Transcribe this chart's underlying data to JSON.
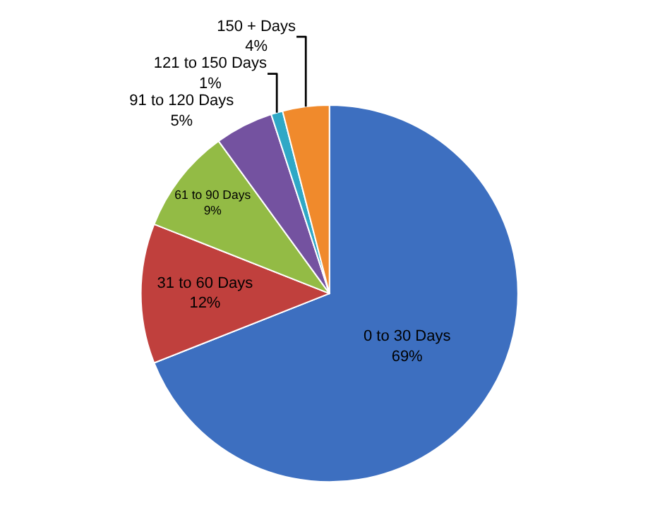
{
  "chart_data": {
    "type": "pie",
    "categories": [
      "0 to 30 Days",
      "31 to 60 Days",
      "61 to 90 Days",
      "91 to 120 Days",
      "121 to 150 Days",
      "150 + Days"
    ],
    "values": [
      69,
      12,
      9,
      5,
      1,
      4
    ],
    "value_labels": [
      "69%",
      "12%",
      "9%",
      "5%",
      "1%",
      "4%"
    ],
    "colors": [
      "#3d6fc0",
      "#c0403d",
      "#93bb45",
      "#7452a0",
      "#2fa8c6",
      "#f08a2c"
    ],
    "legend": false
  }
}
